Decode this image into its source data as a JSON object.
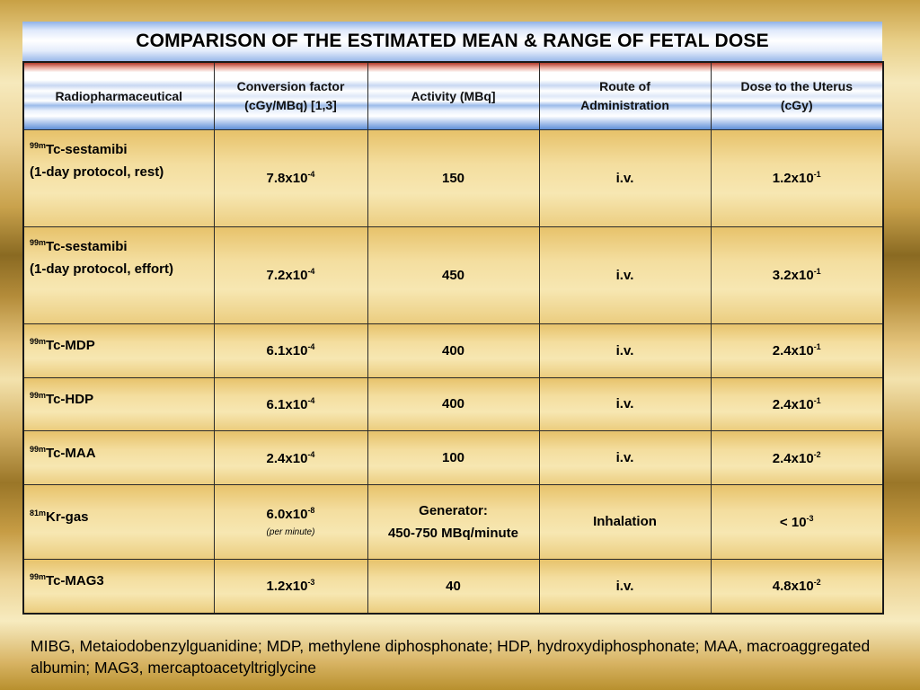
{
  "title": "COMPARISON OF THE ESTIMATED MEAN & RANGE OF FETAL DOSE",
  "headers": {
    "radiopharmaceutical": "Radiopharmaceutical",
    "conversion_line1": "Conversion factor",
    "conversion_line2": "(cGy/MBq) [1,3]",
    "activity": "Activity (MBq]",
    "route_line1": "Route of",
    "route_line2": "Administration",
    "dose_line1": "Dose to the Uterus",
    "dose_line2": "(cGy)"
  },
  "rows": [
    {
      "iso": "99m",
      "name": "Tc-sestamibi",
      "name2": "(1-day protocol, rest)",
      "cf": "7.8x10",
      "cf_exp": "-4",
      "activity": "150",
      "route": "i.v.",
      "dose": "1.2x10",
      "dose_exp": "-1"
    },
    {
      "iso": "99m",
      "name": "Tc-sestamibi",
      "name2": "(1-day protocol, effort)",
      "cf": "7.2x10",
      "cf_exp": "-4",
      "activity": "450",
      "route": "i.v.",
      "dose": "3.2x10",
      "dose_exp": "-1"
    },
    {
      "iso": "99m",
      "name": "Tc-MDP",
      "cf": "6.1x10",
      "cf_exp": "-4",
      "activity": "400",
      "route": "i.v.",
      "dose": "2.4x10",
      "dose_exp": "-1"
    },
    {
      "iso": "99m",
      "name": "Tc-HDP",
      "cf": "6.1x10",
      "cf_exp": "-4",
      "activity": "400",
      "route": "i.v.",
      "dose": "2.4x10",
      "dose_exp": "-1"
    },
    {
      "iso": "99m",
      "name": "Tc-MAA",
      "cf": "2.4x10",
      "cf_exp": "-4",
      "activity": "100",
      "route": "i.v.",
      "dose": "2.4x10",
      "dose_exp": "-2"
    },
    {
      "iso": "81m",
      "name": "Kr-gas",
      "cf": "6.0x10",
      "cf_exp": "-8",
      "cf_note": "(per minute)",
      "activity": "Generator:",
      "activity2": "450-750 MBq/minute",
      "route": "Inhalation",
      "dose": "< 10",
      "dose_exp": "-3"
    },
    {
      "iso": "99m",
      "name": "Tc-MAG3",
      "cf": "1.2x10",
      "cf_exp": "-3",
      "activity": "40",
      "route": "i.v.",
      "dose": "4.8x10",
      "dose_exp": "-2"
    }
  ],
  "footnote": "MIBG, Metaiodobenzylguanidine; MDP, methylene diphosphonate; HDP, hydroxydiphosphonate; MAA, macroaggregated albumin; MAG3, mercaptoacetyltriglycine"
}
